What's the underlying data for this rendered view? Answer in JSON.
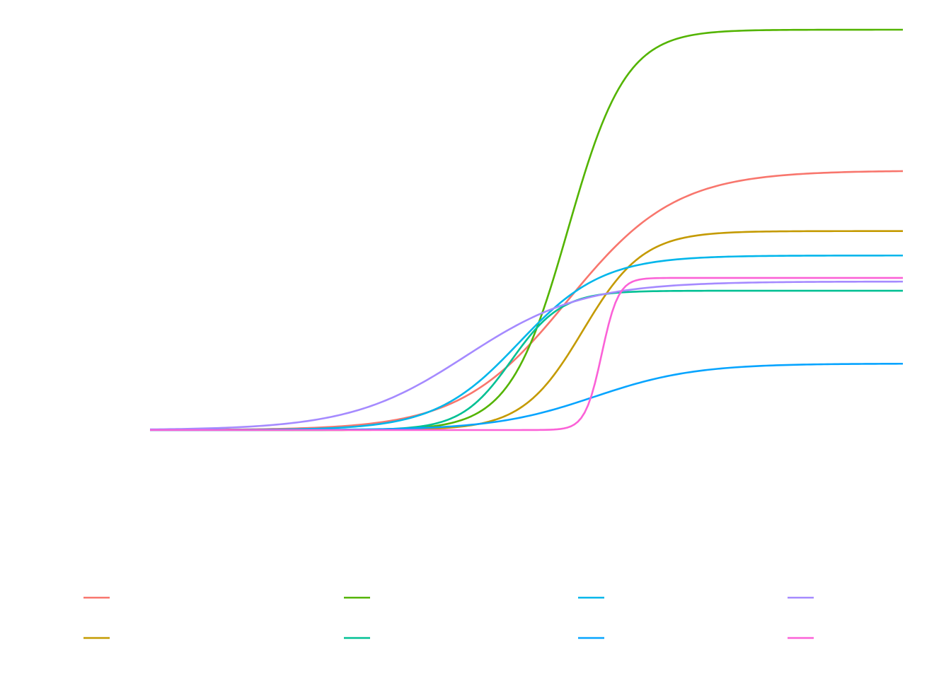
{
  "chart_data": {
    "type": "line",
    "title": "",
    "xlabel": "",
    "ylabel": "",
    "grid": false,
    "axes_visible": false,
    "legend_position": "bottom",
    "xlim": [
      0,
      1
    ],
    "ylim": [
      0,
      1
    ],
    "series": [
      {
        "color": "#F8766D",
        "asymptote": 0.648,
        "midpoint": 0.555,
        "slope": 14
      },
      {
        "color": "#C49A00",
        "asymptote": 0.497,
        "midpoint": 0.575,
        "slope": 25
      },
      {
        "color": "#53B400",
        "asymptote": 1.0,
        "midpoint": 0.555,
        "slope": 26
      },
      {
        "color": "#00C094",
        "asymptote": 0.348,
        "midpoint": 0.48,
        "slope": 30
      },
      {
        "color": "#00B6EB",
        "asymptote": 0.436,
        "midpoint": 0.49,
        "slope": 18
      },
      {
        "color": "#06A4FF",
        "asymptote": 0.166,
        "midpoint": 0.59,
        "slope": 15
      },
      {
        "color": "#A58AFF",
        "asymptote": 0.371,
        "midpoint": 0.42,
        "slope": 13
      },
      {
        "color": "#FB61D7",
        "asymptote": 0.38,
        "midpoint": 0.6,
        "slope": 90
      }
    ]
  }
}
